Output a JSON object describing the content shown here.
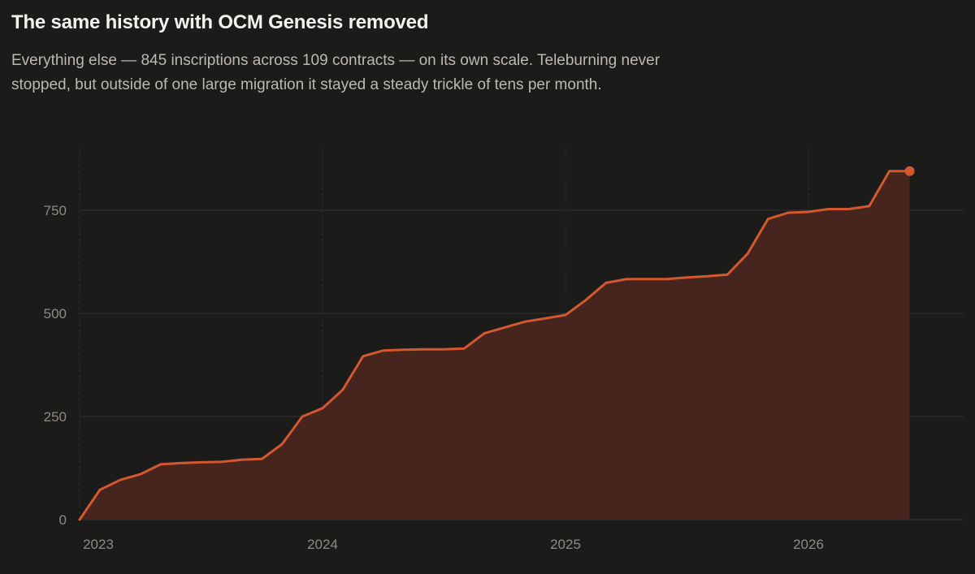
{
  "title": "The same history with OCM Genesis removed",
  "subtitle": "Everything else — 845 inscriptions across 109 contracts — on its own scale. Teleburning never stopped, but outside of one large migration it stayed a steady trickle of tens per month.",
  "colors": {
    "background": "#1b1b1a",
    "line": "#d4582f",
    "area": "#45251d",
    "grid": "#333130",
    "text_muted": "#8e8a83"
  },
  "chart_data": {
    "type": "area",
    "title": "The same history with OCM Genesis removed",
    "xlabel": "",
    "ylabel": "",
    "ylim": [
      0,
      845
    ],
    "xlim": [
      "2023-01",
      "2026-06"
    ],
    "y_ticks": [
      0,
      250,
      500,
      750
    ],
    "x_ticks": [
      "2023",
      "2024",
      "2025",
      "2026"
    ],
    "grid": {
      "horizontal": true,
      "vertical_dashed_at_years": true
    },
    "legend": "none",
    "x": [
      "2023-01",
      "2023-02",
      "2023-03",
      "2023-04",
      "2023-05",
      "2023-06",
      "2023-07",
      "2023-08",
      "2023-09",
      "2023-10",
      "2023-11",
      "2023-12",
      "2024-01",
      "2024-02",
      "2024-03",
      "2024-04",
      "2024-05",
      "2024-06",
      "2024-07",
      "2024-08",
      "2024-09",
      "2024-10",
      "2024-11",
      "2024-12",
      "2025-01",
      "2025-02",
      "2025-03",
      "2025-04",
      "2025-05",
      "2025-06",
      "2025-07",
      "2025-08",
      "2025-09",
      "2025-10",
      "2025-11",
      "2025-12",
      "2026-01",
      "2026-02",
      "2026-03",
      "2026-04",
      "2026-05",
      "2026-06"
    ],
    "series": [
      {
        "values": [
          0,
          72,
          96,
          110,
          134,
          137,
          139,
          140,
          145,
          147,
          183,
          250,
          270,
          315,
          396,
          410,
          412,
          413,
          413,
          415,
          452,
          466,
          480,
          488,
          496,
          532,
          574,
          583,
          583,
          583,
          587,
          590,
          594,
          645,
          729,
          744,
          746,
          753,
          753,
          760,
          845,
          845
        ],
        "final_marker": 845
      }
    ]
  }
}
